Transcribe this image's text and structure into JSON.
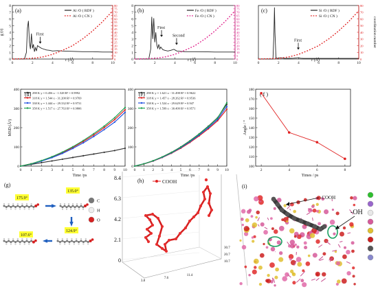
{
  "chart_data": [
    {
      "id": "a",
      "type": "line",
      "panel_label": "(a)",
      "ylabel": "g (r)",
      "xlabel": "r (Å)",
      "y2label": "",
      "xlim": [
        0,
        10
      ],
      "ylim": [
        0,
        8
      ],
      "y2lim": [
        0,
        80
      ],
      "xticks": [
        "0",
        "2",
        "4",
        "6",
        "8",
        "10"
      ],
      "yticks": [
        "0",
        "1",
        "2",
        "3",
        "4",
        "5",
        "6",
        "7",
        "8"
      ],
      "y2ticks": [
        "0",
        "5",
        "10",
        "15",
        "20",
        "25",
        "30",
        "35",
        "40",
        "45",
        "50",
        "55",
        "60",
        "65",
        "70",
        "75",
        "80"
      ],
      "legend": [
        "Al /O ( RDF )",
        "Al /O ( CN )"
      ],
      "annotations": [
        {
          "text": "First",
          "x": 2.5,
          "y": 2.3
        }
      ],
      "series": [
        {
          "name": "Al /O ( RDF )",
          "axis": "left",
          "color": "#222222",
          "x": [
            0,
            1.2,
            1.4,
            1.5,
            1.6,
            1.7,
            1.8,
            1.9,
            2.0,
            2.1,
            2.2,
            2.3,
            2.4,
            2.5,
            2.7,
            2.9,
            3.1,
            3.4,
            3.7,
            4.0,
            4.5,
            5,
            6,
            7,
            8,
            9,
            10
          ],
          "y": [
            0,
            0,
            1.0,
            4.6,
            5.7,
            2.5,
            1.5,
            3.8,
            1.6,
            2.2,
            1.1,
            1.7,
            1.2,
            2.0,
            1.8,
            1.6,
            1.5,
            1.35,
            1.3,
            1.2,
            1.25,
            1.2,
            1.15,
            1.1,
            1.1,
            1.05,
            1.05
          ]
        },
        {
          "name": "Al /O ( CN )",
          "axis": "right",
          "color": "#e02020",
          "x": [
            0,
            2,
            3,
            4,
            5,
            6,
            7,
            8,
            9,
            10
          ],
          "y": [
            0,
            1,
            3,
            7,
            13,
            20,
            30,
            42,
            56,
            72
          ]
        }
      ]
    },
    {
      "id": "b",
      "type": "line",
      "panel_label": "(b)",
      "ylabel": "",
      "xlabel": "r (Å)",
      "y2label": "",
      "xlim": [
        0,
        10
      ],
      "ylim": [
        0,
        8
      ],
      "y2lim": [
        0,
        80
      ],
      "xticks": [
        "0",
        "2",
        "4",
        "6",
        "8",
        "10"
      ],
      "yticks": [
        "0",
        "1",
        "2",
        "3",
        "4",
        "5",
        "6",
        "7",
        "8"
      ],
      "y2ticks": [
        "0",
        "5",
        "10",
        "15",
        "20",
        "25",
        "30",
        "35",
        "40",
        "45",
        "50",
        "55",
        "60",
        "65",
        "70",
        "75",
        "80"
      ],
      "legend": [
        "Fe /O ( RDF )",
        "Fe /O ( CN )"
      ],
      "annotations": [
        {
          "text": "First",
          "x": 2.4,
          "y": 3.3
        },
        {
          "text": "Second",
          "x": 3.9,
          "y": 2.1
        }
      ],
      "series": [
        {
          "name": "Fe /O ( RDF )",
          "axis": "left",
          "color": "#222222",
          "x": [
            0,
            1.4,
            1.6,
            1.7,
            1.8,
            1.9,
            2.0,
            2.1,
            2.2,
            2.3,
            2.4,
            2.5,
            2.6,
            2.8,
            3.0,
            3.3,
            3.6,
            3.9,
            4.2,
            4.6,
            5,
            6,
            7,
            8,
            9,
            10
          ],
          "y": [
            0,
            0,
            1.5,
            6.3,
            3.0,
            6.1,
            2.5,
            4.0,
            2.1,
            1.6,
            2.2,
            1.5,
            1.8,
            1.4,
            1.3,
            1.2,
            1.3,
            1.45,
            1.2,
            1.15,
            1.1,
            1.1,
            1.08,
            1.05,
            1.05,
            1.05
          ]
        },
        {
          "name": "Fe /O ( CN )",
          "axis": "right",
          "color": "#e0208a",
          "x": [
            0,
            2,
            3,
            4,
            5,
            6,
            7,
            8,
            9,
            10
          ],
          "y": [
            0,
            1,
            3,
            7,
            13,
            20,
            30,
            42,
            56,
            72
          ]
        }
      ]
    },
    {
      "id": "c",
      "type": "line",
      "panel_label": "(c)",
      "ylabel": "",
      "xlabel": "r (Å)",
      "y2label": "coordination number",
      "xlim": [
        0,
        10
      ],
      "ylim": [
        0,
        80
      ],
      "y2lim": [
        0,
        80
      ],
      "xticks": [
        "0",
        "2",
        "4",
        "6",
        "8",
        "10"
      ],
      "yticks": [],
      "y2ticks": [
        "0",
        "10",
        "20",
        "30",
        "40",
        "50",
        "60",
        "70",
        "80"
      ],
      "legend": [
        "Si /O ( RDF )",
        "Si /O ( CN )"
      ],
      "annotations": [
        {
          "text": "First",
          "x": 3.7,
          "y": 14
        }
      ],
      "series": [
        {
          "name": "Si /O ( RDF )",
          "axis": "left",
          "color": "#222222",
          "x": [
            0,
            1.45,
            1.55,
            1.6,
            1.65,
            1.75,
            1.9,
            2.2,
            2.6,
            3.0,
            3.5,
            4.0,
            4.2,
            4.5,
            5,
            6,
            7,
            8,
            9,
            10
          ],
          "y": [
            0,
            0,
            40,
            77,
            40,
            2,
            1,
            2,
            1,
            1,
            1.2,
            2,
            1.2,
            1,
            1,
            1,
            1,
            1,
            1,
            1
          ]
        },
        {
          "name": "Si /O ( CN )",
          "axis": "right",
          "color": "#e02020",
          "x": [
            0,
            2,
            3,
            4,
            5,
            6,
            7,
            8,
            9,
            10
          ],
          "y": [
            0,
            1,
            3,
            7,
            13,
            20,
            30,
            42,
            56,
            72
          ]
        }
      ]
    },
    {
      "id": "d",
      "type": "line",
      "panel_label": "(d)",
      "ylabel": "MSD (Å²)",
      "xlabel": "Time /ps",
      "xlim": [
        0,
        10
      ],
      "ylim": [
        0,
        400
      ],
      "xticks": [
        "0",
        "1",
        "2",
        "3",
        "4",
        "5",
        "6",
        "7",
        "8",
        "9",
        "10"
      ],
      "yticks": [
        "0",
        "100",
        "200",
        "300",
        "400"
      ],
      "legend": [
        "298 K   y = 0.456 x - 1.528   R² = 0.9992",
        "318 K   y = 1.544 x - 31.200  R² = 0.9769",
        "338 K   y = 1.444 x - 29.332  R² = 0.9731",
        "358 K   y = 1.517 x - 27.763  R² = 0.9806"
      ],
      "series": [
        {
          "name": "298 K",
          "color": "#333333",
          "x": [
            0,
            1,
            2,
            3,
            4,
            5,
            6,
            7,
            8,
            9,
            10
          ],
          "y": [
            0,
            9,
            18,
            27,
            36,
            45,
            54,
            63,
            72,
            81,
            93
          ]
        },
        {
          "name": "318 K",
          "color": "#e02020",
          "x": [
            0,
            1,
            2,
            3,
            4,
            5,
            6,
            7,
            8,
            9,
            10
          ],
          "y": [
            0,
            12,
            28,
            47,
            70,
            97,
            128,
            162,
            200,
            242,
            293
          ]
        },
        {
          "name": "338 K",
          "color": "#2050e0",
          "x": [
            0,
            1,
            2,
            3,
            4,
            5,
            6,
            7,
            8,
            9,
            10
          ],
          "y": [
            0,
            11,
            26,
            44,
            66,
            92,
            121,
            154,
            190,
            229,
            280
          ]
        },
        {
          "name": "358 K",
          "color": "#20a050",
          "x": [
            0,
            1,
            2,
            3,
            4,
            5,
            6,
            7,
            8,
            9,
            10
          ],
          "y": [
            0,
            12,
            29,
            49,
            73,
            101,
            133,
            169,
            208,
            252,
            305
          ]
        }
      ]
    },
    {
      "id": "e",
      "type": "line",
      "panel_label": "(e)",
      "ylabel": "",
      "xlabel": "Time /ps",
      "xlim": [
        0,
        10
      ],
      "ylim": [
        0,
        400
      ],
      "xticks": [
        "0",
        "1",
        "2",
        "3",
        "4",
        "5",
        "6",
        "7",
        "8",
        "9",
        "10"
      ],
      "yticks": [
        "0",
        "100",
        "200",
        "300",
        "400"
      ],
      "legend": [
        "298 K   y = 1.621 x - 31.498  R² = 0.9622",
        "318 K   y = 1.457 x - 28.262  R² = 0.9536",
        "338 K   y = 1.524 x - 29.629  R² = 0.947",
        "358 K   y = 1.599 x - 30.499  R² = 0.9571"
      ],
      "series": [
        {
          "name": "298 K",
          "color": "#333333",
          "x": [
            0,
            1,
            2,
            3,
            4,
            5,
            6,
            7,
            8,
            9,
            10
          ],
          "y": [
            0,
            12,
            28,
            48,
            72,
            100,
            132,
            168,
            208,
            252,
            322
          ]
        },
        {
          "name": "318 K",
          "color": "#e02020",
          "x": [
            0,
            1,
            2,
            3,
            4,
            5,
            6,
            7,
            8,
            9,
            10
          ],
          "y": [
            0,
            11,
            26,
            45,
            67,
            93,
            123,
            157,
            194,
            236,
            296
          ]
        },
        {
          "name": "338 K",
          "color": "#2050e0",
          "x": [
            0,
            1,
            2,
            3,
            4,
            5,
            6,
            7,
            8,
            9,
            10
          ],
          "y": [
            0,
            12,
            27,
            46,
            69,
            96,
            127,
            162,
            200,
            243,
            310
          ]
        },
        {
          "name": "358 K",
          "color": "#20a050",
          "x": [
            0,
            1,
            2,
            3,
            4,
            5,
            6,
            7,
            8,
            9,
            10
          ],
          "y": [
            0,
            12,
            28,
            48,
            71,
            99,
            131,
            167,
            206,
            250,
            330
          ]
        }
      ]
    },
    {
      "id": "f",
      "type": "line",
      "panel_label": "( f )",
      "ylabel": "Angle / °",
      "xlabel": "Times / ps",
      "xlim": [
        1.6,
        8.4
      ],
      "ylim": [
        100,
        180
      ],
      "xticks": [
        "2",
        "4",
        "6",
        "8"
      ],
      "yticks": [
        "100",
        "110",
        "120",
        "130",
        "140",
        "150",
        "160",
        "170",
        "180"
      ],
      "legend": [],
      "series": [
        {
          "name": "",
          "color": "#e02020",
          "x": [
            2,
            4,
            6,
            8
          ],
          "y": [
            175.9,
            135,
            124.9,
            107.6
          ]
        }
      ]
    }
  ],
  "panel_g": {
    "label": "(g)",
    "angles": [
      "175.9°",
      "135.0°",
      "124.9°",
      "107.6°"
    ],
    "legend": [
      {
        "symbol": "C",
        "color": "#777777"
      },
      {
        "symbol": "H",
        "color": "#eeeeee"
      },
      {
        "symbol": "O",
        "color": "#d62020"
      }
    ]
  },
  "panel_h": {
    "label": "(h)",
    "series_name": "COOH",
    "zticks": [
      "8.4",
      "6.3",
      "4.2",
      "2.1",
      "0"
    ],
    "xticks": [
      "3.8",
      "7.6",
      "11.4"
    ],
    "yticks": [
      "10.7",
      "20.7",
      "30.7"
    ]
  },
  "panel_i": {
    "label": "(i)",
    "annotations": [
      "-COOH",
      "-OH"
    ],
    "legend_colors": [
      "#2fbf2f",
      "#9966cc",
      "#e8e8e8",
      "#d65a9a",
      "#e0c030",
      "#cc2020",
      "#555555",
      "#8888cc"
    ]
  }
}
